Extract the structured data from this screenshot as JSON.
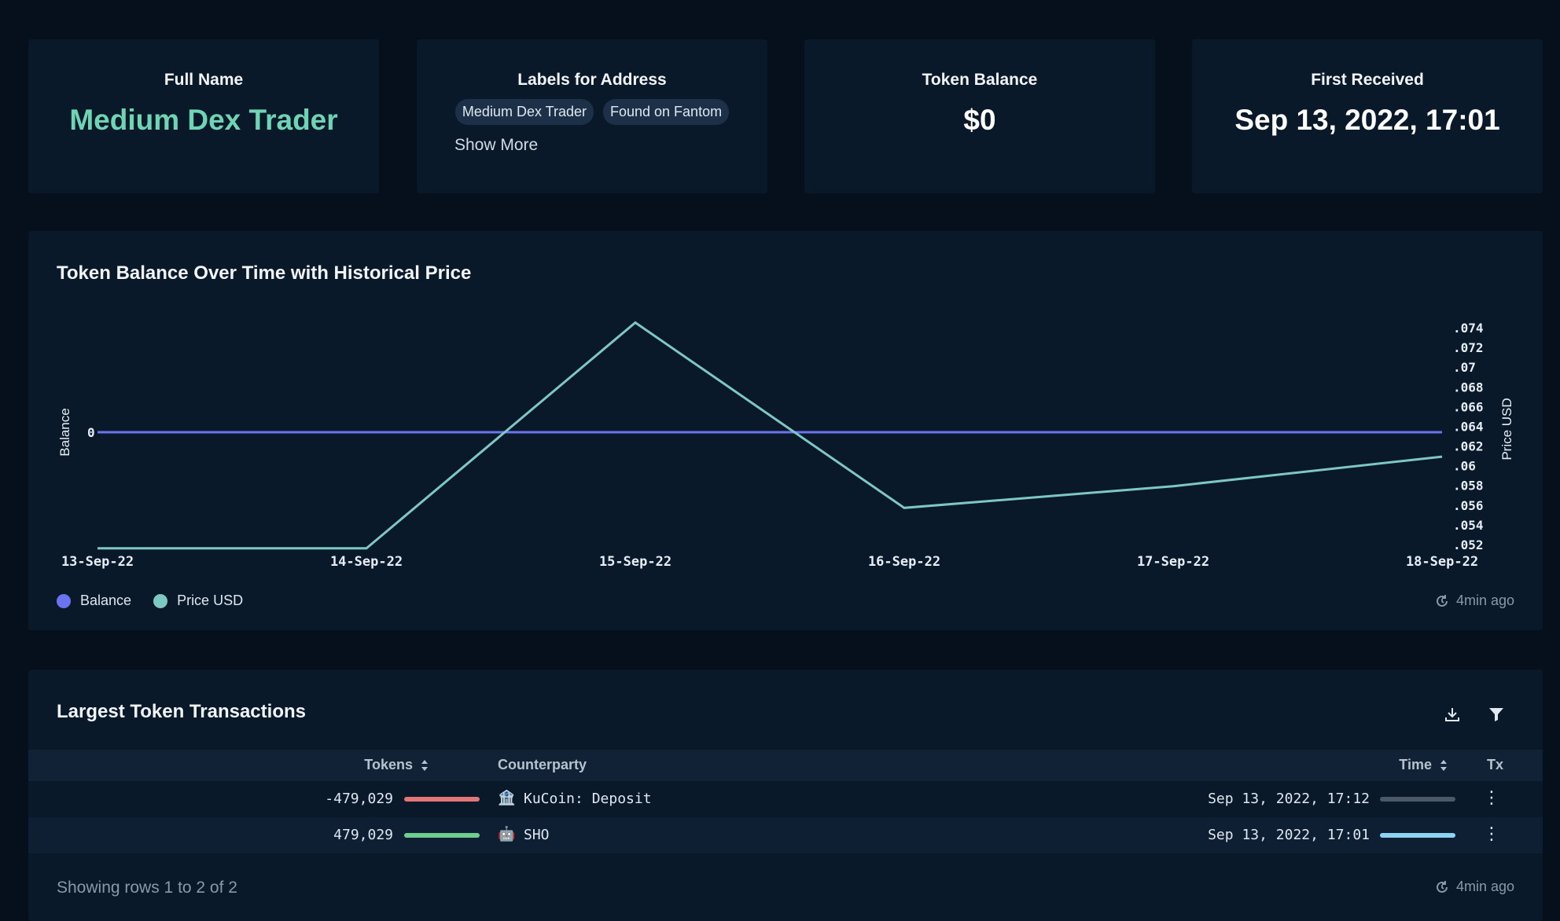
{
  "stats": {
    "full_name_label": "Full Name",
    "full_name_value": "Medium Dex Trader",
    "labels_label": "Labels for Address",
    "labels": [
      "Medium Dex Trader",
      "Found on Fantom"
    ],
    "show_more": "Show More",
    "balance_label": "Token Balance",
    "balance_value": "$0",
    "first_received_label": "First Received",
    "first_received_value": "Sep 13, 2022, 17:01"
  },
  "chart": {
    "title": "Token Balance Over Time with Historical Price",
    "updated": "4min ago",
    "colors": {
      "balance": "#6b73f0",
      "price": "#7ec8c4"
    }
  },
  "chart_data": {
    "type": "line",
    "title": "Token Balance Over Time with Historical Price",
    "x": [
      "13-Sep-22",
      "14-Sep-22",
      "15-Sep-22",
      "16-Sep-22",
      "17-Sep-22",
      "18-Sep-22"
    ],
    "series": [
      {
        "name": "Balance",
        "axis": "left",
        "values": [
          0,
          0,
          0,
          0,
          0,
          0
        ]
      },
      {
        "name": "Price USD",
        "axis": "right",
        "values": [
          0.0517,
          0.0517,
          0.0746,
          0.0558,
          0.058,
          0.061
        ]
      }
    ],
    "ylabel_left": "Balance",
    "yticks_left": [
      "0"
    ],
    "ylabel_right": "Price USD",
    "yticks_right": [
      ".074",
      ".072",
      ".07",
      ".068",
      ".066",
      ".064",
      ".062",
      ".06",
      ".058",
      ".056",
      ".054",
      ".052"
    ],
    "ylim_right": [
      0.052,
      0.074
    ],
    "legend": "bottom-left",
    "grid": false
  },
  "table": {
    "title": "Largest Token Transactions",
    "columns": {
      "tokens": "Tokens",
      "counterparty": "Counterparty",
      "time": "Time",
      "tx": "Tx"
    },
    "rows": [
      {
        "tokens": "-479,029",
        "tokens_color": "#e27575",
        "tokens_fraction": 1.0,
        "counterparty_icon": "🏦",
        "counterparty": "KuCoin: Deposit",
        "time": "Sep 13, 2022, 17:12",
        "time_color": "#4a5868"
      },
      {
        "tokens": "479,029",
        "tokens_color": "#6fce8e",
        "tokens_fraction": 1.0,
        "counterparty_icon": "🤖",
        "counterparty": "SHO",
        "time": "Sep 13, 2022, 17:01",
        "time_color": "#8ed2f2"
      }
    ],
    "footer": "Showing rows 1 to 2 of 2",
    "updated": "4min ago"
  }
}
